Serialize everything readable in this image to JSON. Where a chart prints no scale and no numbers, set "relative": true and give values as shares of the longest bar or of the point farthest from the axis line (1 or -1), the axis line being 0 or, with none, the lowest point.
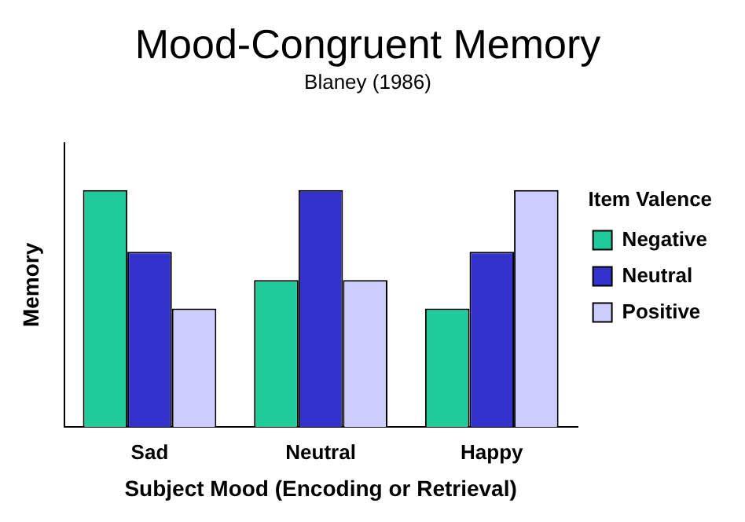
{
  "chart_data": {
    "type": "bar",
    "title": "Mood-Congruent Memory",
    "subtitle": "Blaney (1986)",
    "xlabel": "Subject Mood (Encoding or Retrieval)",
    "ylabel": "Memory",
    "legend_title": "Item Valence",
    "legend": "right",
    "relative": true,
    "grid": false,
    "categories": [
      "Sad",
      "Neutral",
      "Happy"
    ],
    "series": [
      {
        "name": "Negative",
        "color": "#1fcc99",
        "values": [
          1,
          0.62,
          0.5
        ]
      },
      {
        "name": "Neutral",
        "color": "#3333cc",
        "values": [
          0.74,
          1,
          0.74
        ]
      },
      {
        "name": "Positive",
        "color": "#ccccff",
        "values": [
          0.5,
          0.62,
          1
        ]
      }
    ]
  }
}
